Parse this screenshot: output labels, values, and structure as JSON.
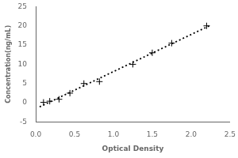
{
  "chart_data": {
    "type": "scatter",
    "xlabel": "Optical Density",
    "ylabel": "Concentration(ng/mL)",
    "xlim": [
      0,
      2.5
    ],
    "ylim": [
      -5,
      25
    ],
    "xticks": [
      {
        "value": 0,
        "label": "0.0"
      },
      0.5,
      {
        "value": 1.0,
        "label": "1.0"
      },
      1.5,
      {
        "value": 2.0,
        "label": "2.0"
      },
      2.5
    ],
    "yticks": [
      -5,
      0,
      5,
      10,
      15,
      20,
      25
    ],
    "grid": false,
    "series": [
      {
        "type": "scatter",
        "color": "black",
        "marker": "+",
        "x": [
          0.1,
          0.18,
          0.3,
          0.44,
          0.62,
          0.82,
          1.25,
          1.5,
          1.75,
          2.2
        ],
        "values": [
          0.1,
          0.4,
          0.9,
          2.5,
          5.0,
          5.5,
          10.0,
          13.0,
          15.5,
          20.0
        ]
      },
      {
        "type": "line",
        "color": "black",
        "line_style": "dotted",
        "x": [
          0.05,
          2.25
        ],
        "values": [
          -1.0643,
          20.1591
        ]
      }
    ]
  }
}
